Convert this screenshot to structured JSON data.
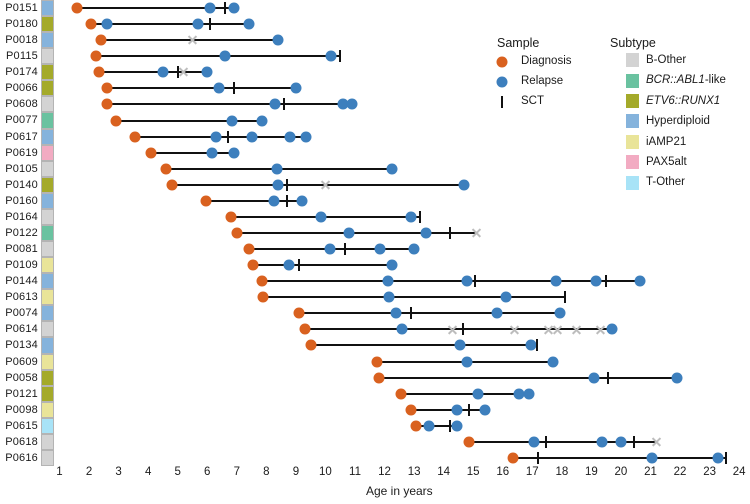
{
  "chart_data": {
    "type": "swimmer",
    "title": "",
    "xlabel": "Age in years",
    "xlim": [
      0.3,
      24.3
    ],
    "x_ticks": [
      1,
      2,
      3,
      4,
      5,
      6,
      7,
      8,
      9,
      10,
      11,
      12,
      13,
      14,
      15,
      16,
      17,
      18,
      19,
      20,
      21,
      22,
      23,
      24
    ],
    "grid": false,
    "marker_colors": {
      "diagnosis": "#d9611f",
      "relapse": "#3d7fbd",
      "sct": "#111111",
      "censor": "#bdbdbd"
    },
    "sample_legend": {
      "title": "Sample",
      "entries": [
        {
          "label": "Diagnosis",
          "marker": "dot",
          "color": "#d9611f"
        },
        {
          "label": "Relapse",
          "marker": "dot",
          "color": "#3d7fbd"
        },
        {
          "label": "SCT",
          "marker": "tick",
          "color": "#111111"
        }
      ]
    },
    "subtype_legend": {
      "title": "Subtype",
      "entries": [
        {
          "plain": "B-Other",
          "italic": "",
          "key": "B-Other"
        },
        {
          "italic": "BCR::ABL1",
          "plain": "-like",
          "key": "BCR::ABL1-like"
        },
        {
          "italic": "ETV6::RUNX1",
          "plain": "",
          "key": "ETV6::RUNX1"
        },
        {
          "plain": "Hyperdiploid",
          "italic": "",
          "key": "Hyperdiploid"
        },
        {
          "plain": "iAMP21",
          "italic": "",
          "key": "iAMP21"
        },
        {
          "plain": "PAX5alt",
          "italic": "",
          "key": "PAX5alt"
        },
        {
          "plain": "T-Other",
          "italic": "",
          "key": "T-Other"
        }
      ]
    },
    "subtype_colors": {
      "B-Other": "#d3d3d3",
      "BCR::ABL1-like": "#6ac2a0",
      "ETV6::RUNX1": "#a4aa2a",
      "Hyperdiploid": "#85b3dc",
      "iAMP21": "#e9e499",
      "PAX5alt": "#f2abc2",
      "T-Other": "#a8e3f7"
    },
    "patients": [
      {
        "id": "P0151",
        "subtype": "Hyperdiploid",
        "events": [
          {
            "age": 1.6,
            "type": "diagnosis"
          },
          {
            "age": 6.1,
            "type": "relapse"
          },
          {
            "age": 6.6,
            "type": "sct"
          },
          {
            "age": 6.9,
            "type": "relapse"
          }
        ]
      },
      {
        "id": "P0180",
        "subtype": "ETV6::RUNX1",
        "events": [
          {
            "age": 2.05,
            "type": "diagnosis"
          },
          {
            "age": 2.6,
            "type": "relapse"
          },
          {
            "age": 5.7,
            "type": "relapse"
          },
          {
            "age": 6.1,
            "type": "sct"
          },
          {
            "age": 7.4,
            "type": "relapse"
          }
        ]
      },
      {
        "id": "P0018",
        "subtype": "Hyperdiploid",
        "events": [
          {
            "age": 2.4,
            "type": "diagnosis"
          },
          {
            "age": 5.5,
            "type": "censor"
          },
          {
            "age": 8.4,
            "type": "relapse"
          }
        ]
      },
      {
        "id": "P0115",
        "subtype": "B-Other",
        "events": [
          {
            "age": 2.25,
            "type": "diagnosis"
          },
          {
            "age": 6.6,
            "type": "relapse"
          },
          {
            "age": 10.2,
            "type": "relapse"
          },
          {
            "age": 10.5,
            "type": "sct"
          }
        ]
      },
      {
        "id": "P0174",
        "subtype": "ETV6::RUNX1",
        "events": [
          {
            "age": 2.35,
            "type": "diagnosis"
          },
          {
            "age": 4.5,
            "type": "relapse"
          },
          {
            "age": 5.0,
            "type": "sct"
          },
          {
            "age": 5.2,
            "type": "censor"
          },
          {
            "age": 6.0,
            "type": "relapse"
          }
        ]
      },
      {
        "id": "P0066",
        "subtype": "ETV6::RUNX1",
        "events": [
          {
            "age": 2.6,
            "type": "diagnosis"
          },
          {
            "age": 6.4,
            "type": "relapse"
          },
          {
            "age": 6.9,
            "type": "sct"
          },
          {
            "age": 9.0,
            "type": "relapse"
          }
        ]
      },
      {
        "id": "P0608",
        "subtype": "B-Other",
        "events": [
          {
            "age": 2.6,
            "type": "diagnosis"
          },
          {
            "age": 8.3,
            "type": "relapse"
          },
          {
            "age": 8.6,
            "type": "sct"
          },
          {
            "age": 10.6,
            "type": "relapse"
          },
          {
            "age": 10.9,
            "type": "relapse"
          }
        ]
      },
      {
        "id": "P0077",
        "subtype": "BCR::ABL1-like",
        "events": [
          {
            "age": 2.9,
            "type": "diagnosis"
          },
          {
            "age": 6.85,
            "type": "relapse"
          },
          {
            "age": 7.85,
            "type": "relapse"
          }
        ]
      },
      {
        "id": "P0617",
        "subtype": "Hyperdiploid",
        "events": [
          {
            "age": 3.55,
            "type": "diagnosis"
          },
          {
            "age": 6.3,
            "type": "relapse"
          },
          {
            "age": 6.7,
            "type": "sct"
          },
          {
            "age": 7.5,
            "type": "relapse"
          },
          {
            "age": 8.8,
            "type": "relapse"
          },
          {
            "age": 9.35,
            "type": "relapse"
          }
        ]
      },
      {
        "id": "P0619",
        "subtype": "PAX5alt",
        "events": [
          {
            "age": 4.1,
            "type": "diagnosis"
          },
          {
            "age": 6.15,
            "type": "relapse"
          },
          {
            "age": 6.9,
            "type": "relapse"
          }
        ]
      },
      {
        "id": "P0105",
        "subtype": "B-Other",
        "events": [
          {
            "age": 4.6,
            "type": "diagnosis"
          },
          {
            "age": 8.35,
            "type": "relapse"
          },
          {
            "age": 12.25,
            "type": "relapse"
          }
        ]
      },
      {
        "id": "P0140",
        "subtype": "ETV6::RUNX1",
        "events": [
          {
            "age": 4.8,
            "type": "diagnosis"
          },
          {
            "age": 8.4,
            "type": "relapse"
          },
          {
            "age": 8.7,
            "type": "sct"
          },
          {
            "age": 10.0,
            "type": "censor"
          },
          {
            "age": 14.7,
            "type": "relapse"
          }
        ]
      },
      {
        "id": "P0160",
        "subtype": "Hyperdiploid",
        "events": [
          {
            "age": 5.95,
            "type": "diagnosis"
          },
          {
            "age": 8.25,
            "type": "relapse"
          },
          {
            "age": 8.7,
            "type": "sct"
          },
          {
            "age": 9.2,
            "type": "relapse"
          }
        ]
      },
      {
        "id": "P0164",
        "subtype": "B-Other",
        "events": [
          {
            "age": 6.8,
            "type": "diagnosis"
          },
          {
            "age": 9.85,
            "type": "relapse"
          },
          {
            "age": 12.9,
            "type": "relapse"
          },
          {
            "age": 13.2,
            "type": "sct"
          }
        ]
      },
      {
        "id": "P0122",
        "subtype": "BCR::ABL1-like",
        "events": [
          {
            "age": 7.0,
            "type": "diagnosis"
          },
          {
            "age": 10.8,
            "type": "relapse"
          },
          {
            "age": 13.4,
            "type": "relapse"
          },
          {
            "age": 14.2,
            "type": "sct"
          },
          {
            "age": 15.1,
            "type": "censor"
          }
        ]
      },
      {
        "id": "P0081",
        "subtype": "B-Other",
        "events": [
          {
            "age": 7.4,
            "type": "diagnosis"
          },
          {
            "age": 10.15,
            "type": "relapse"
          },
          {
            "age": 10.65,
            "type": "sct"
          },
          {
            "age": 11.85,
            "type": "relapse"
          },
          {
            "age": 13.0,
            "type": "relapse"
          }
        ]
      },
      {
        "id": "P0109",
        "subtype": "iAMP21",
        "events": [
          {
            "age": 7.55,
            "type": "diagnosis"
          },
          {
            "age": 8.75,
            "type": "relapse"
          },
          {
            "age": 9.1,
            "type": "sct"
          },
          {
            "age": 12.25,
            "type": "relapse"
          }
        ]
      },
      {
        "id": "P0144",
        "subtype": "Hyperdiploid",
        "events": [
          {
            "age": 7.85,
            "type": "diagnosis"
          },
          {
            "age": 12.1,
            "type": "relapse"
          },
          {
            "age": 14.8,
            "type": "relapse"
          },
          {
            "age": 15.05,
            "type": "sct"
          },
          {
            "age": 17.8,
            "type": "relapse"
          },
          {
            "age": 19.15,
            "type": "relapse"
          },
          {
            "age": 19.5,
            "type": "sct"
          },
          {
            "age": 20.65,
            "type": "relapse"
          }
        ]
      },
      {
        "id": "P0613",
        "subtype": "iAMP21",
        "events": [
          {
            "age": 7.9,
            "type": "diagnosis"
          },
          {
            "age": 12.15,
            "type": "relapse"
          },
          {
            "age": 16.1,
            "type": "relapse"
          },
          {
            "age": 18.1,
            "type": "sct"
          }
        ]
      },
      {
        "id": "P0074",
        "subtype": "Hyperdiploid",
        "events": [
          {
            "age": 9.1,
            "type": "diagnosis"
          },
          {
            "age": 12.4,
            "type": "relapse"
          },
          {
            "age": 12.9,
            "type": "sct"
          },
          {
            "age": 15.8,
            "type": "relapse"
          },
          {
            "age": 17.95,
            "type": "relapse"
          }
        ]
      },
      {
        "id": "P0614",
        "subtype": "B-Other",
        "events": [
          {
            "age": 9.3,
            "type": "diagnosis"
          },
          {
            "age": 12.6,
            "type": "relapse"
          },
          {
            "age": 14.3,
            "type": "censor"
          },
          {
            "age": 14.65,
            "type": "sct"
          },
          {
            "age": 16.4,
            "type": "censor"
          },
          {
            "age": 17.55,
            "type": "censor"
          },
          {
            "age": 17.85,
            "type": "censor"
          },
          {
            "age": 18.5,
            "type": "censor"
          },
          {
            "age": 19.3,
            "type": "censor"
          },
          {
            "age": 19.7,
            "type": "relapse"
          }
        ]
      },
      {
        "id": "P0134",
        "subtype": "Hyperdiploid",
        "events": [
          {
            "age": 9.5,
            "type": "diagnosis"
          },
          {
            "age": 14.55,
            "type": "relapse"
          },
          {
            "age": 16.95,
            "type": "relapse"
          },
          {
            "age": 17.15,
            "type": "sct"
          }
        ]
      },
      {
        "id": "P0609",
        "subtype": "iAMP21",
        "events": [
          {
            "age": 11.75,
            "type": "diagnosis"
          },
          {
            "age": 14.8,
            "type": "relapse"
          },
          {
            "age": 17.7,
            "type": "relapse"
          }
        ]
      },
      {
        "id": "P0058",
        "subtype": "ETV6::RUNX1",
        "events": [
          {
            "age": 11.8,
            "type": "diagnosis"
          },
          {
            "age": 19.1,
            "type": "relapse"
          },
          {
            "age": 19.55,
            "type": "sct"
          },
          {
            "age": 21.9,
            "type": "relapse"
          }
        ]
      },
      {
        "id": "P0121",
        "subtype": "ETV6::RUNX1",
        "events": [
          {
            "age": 12.55,
            "type": "diagnosis"
          },
          {
            "age": 15.15,
            "type": "relapse"
          },
          {
            "age": 16.55,
            "type": "relapse"
          },
          {
            "age": 16.9,
            "type": "relapse"
          }
        ]
      },
      {
        "id": "P0098",
        "subtype": "iAMP21",
        "events": [
          {
            "age": 12.9,
            "type": "diagnosis"
          },
          {
            "age": 14.45,
            "type": "relapse"
          },
          {
            "age": 14.85,
            "type": "sct"
          },
          {
            "age": 15.4,
            "type": "relapse"
          }
        ]
      },
      {
        "id": "P0615",
        "subtype": "T-Other",
        "events": [
          {
            "age": 13.05,
            "type": "diagnosis"
          },
          {
            "age": 13.5,
            "type": "relapse"
          },
          {
            "age": 14.2,
            "type": "sct"
          },
          {
            "age": 14.45,
            "type": "relapse"
          }
        ]
      },
      {
        "id": "P0618",
        "subtype": "B-Other",
        "events": [
          {
            "age": 14.85,
            "type": "diagnosis"
          },
          {
            "age": 17.05,
            "type": "relapse"
          },
          {
            "age": 17.45,
            "type": "sct"
          },
          {
            "age": 19.35,
            "type": "relapse"
          },
          {
            "age": 20.0,
            "type": "relapse"
          },
          {
            "age": 20.45,
            "type": "sct"
          },
          {
            "age": 21.2,
            "type": "censor"
          }
        ]
      },
      {
        "id": "P0616",
        "subtype": "B-Other",
        "events": [
          {
            "age": 16.35,
            "type": "diagnosis"
          },
          {
            "age": 17.2,
            "type": "sct"
          },
          {
            "age": 21.05,
            "type": "relapse"
          },
          {
            "age": 23.3,
            "type": "relapse"
          },
          {
            "age": 23.55,
            "type": "sct"
          }
        ]
      }
    ]
  }
}
